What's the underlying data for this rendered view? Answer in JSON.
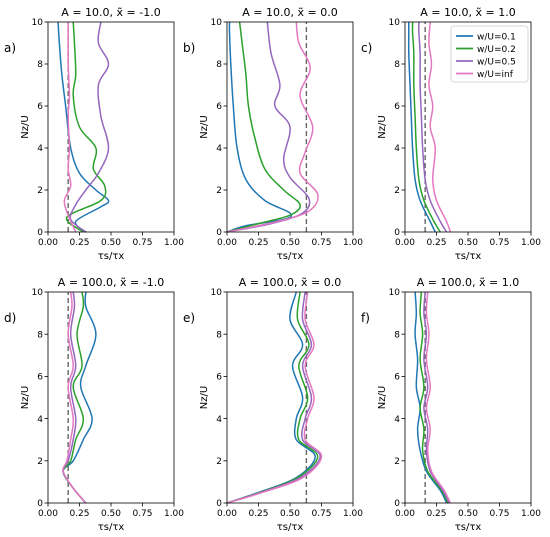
{
  "colors": {
    "w/U=0.1": "#1f77b4",
    "w/U=0.2": "#2ca02c",
    "w/U=0.5": "#9467bd",
    "w/U=inf": "#e377c2",
    "reference": "#666666",
    "axis": "#000000"
  },
  "legend": {
    "placement": "top-right",
    "panel": "c",
    "entries": [
      "w/U=0.1",
      "w/U=0.2",
      "w/U=0.5",
      "w/U=inf"
    ]
  },
  "chart_data": [
    {
      "type": "line",
      "panel_label": "a)",
      "title": "A = 10.0, x̃ = -1.0",
      "xlabel": "τs/τx",
      "ylabel": "Nz/U",
      "xlim": [
        0,
        1
      ],
      "ylim": [
        0,
        10
      ],
      "xticks": [
        "0.00",
        "0.25",
        "0.50",
        "0.75",
        "1.00"
      ],
      "yticks": [
        "0",
        "2",
        "4",
        "6",
        "8",
        "10"
      ],
      "reference_x": 0.16,
      "series": [
        {
          "name": "w/U=0.1",
          "x": [
            0.3,
            0.22,
            0.42,
            0.48,
            0.38,
            0.25,
            0.18,
            0.14,
            0.11,
            0.09,
            0.08
          ],
          "y": [
            0,
            0.5,
            1.2,
            1.5,
            2.0,
            2.8,
            4.0,
            6.0,
            7.5,
            9.0,
            10
          ]
        },
        {
          "name": "w/U=0.2",
          "x": [
            0.28,
            0.15,
            0.42,
            0.45,
            0.36,
            0.38,
            0.25,
            0.2,
            0.22,
            0.21,
            0.2
          ],
          "y": [
            0,
            0.7,
            1.5,
            2.2,
            3.0,
            4.0,
            5.0,
            6.5,
            7.5,
            9.0,
            10
          ]
        },
        {
          "name": "w/U=0.5",
          "x": [
            0.3,
            0.18,
            0.22,
            0.3,
            0.4,
            0.48,
            0.42,
            0.4,
            0.48,
            0.4,
            0.42
          ],
          "y": [
            0,
            0.6,
            1.3,
            2.0,
            2.8,
            4.0,
            5.5,
            7.0,
            8.0,
            9.0,
            10
          ]
        },
        {
          "name": "w/U=inf",
          "x": [
            0.22,
            0.16,
            0.13,
            0.18,
            0.16,
            0.17,
            0.16,
            0.17,
            0.16,
            0.16,
            0.16
          ],
          "y": [
            0,
            0.8,
            1.5,
            2.2,
            3.0,
            4.0,
            5.5,
            6.5,
            8.0,
            9.0,
            10
          ]
        }
      ]
    },
    {
      "type": "line",
      "panel_label": "b)",
      "title": "A = 10.0, x̃ = 0.0",
      "xlabel": "τs/τx",
      "ylabel": "Nz/U",
      "xlim": [
        0,
        1
      ],
      "ylim": [
        0,
        10
      ],
      "xticks": [
        "0.00",
        "0.25",
        "0.50",
        "0.75",
        "1.00"
      ],
      "yticks": [
        "0",
        "2",
        "4",
        "6",
        "8",
        "10"
      ],
      "reference_x": 0.63,
      "series": [
        {
          "name": "w/U=0.1",
          "x": [
            0,
            0.15,
            0.45,
            0.5,
            0.3,
            0.15,
            0.08,
            0.05,
            0.03,
            0.02,
            0.02
          ],
          "y": [
            0,
            0.3,
            0.6,
            0.9,
            1.5,
            2.5,
            4.0,
            6.0,
            8.0,
            9.5,
            10
          ]
        },
        {
          "name": "w/U=0.2",
          "x": [
            0,
            0.25,
            0.5,
            0.58,
            0.45,
            0.3,
            0.22,
            0.17,
            0.15,
            0.12,
            0.1
          ],
          "y": [
            0,
            0.4,
            0.8,
            1.3,
            2.0,
            3.0,
            4.5,
            6.0,
            7.5,
            9.0,
            10
          ]
        },
        {
          "name": "w/U=0.5",
          "x": [
            0,
            0.35,
            0.6,
            0.65,
            0.5,
            0.45,
            0.5,
            0.38,
            0.42,
            0.35,
            0.32
          ],
          "y": [
            0,
            0.4,
            0.9,
            1.6,
            2.6,
            3.5,
            5.0,
            6.0,
            7.0,
            8.5,
            10
          ]
        },
        {
          "name": "w/U=inf",
          "x": [
            0,
            0.4,
            0.65,
            0.72,
            0.58,
            0.62,
            0.68,
            0.58,
            0.66,
            0.57,
            0.55
          ],
          "y": [
            0,
            0.5,
            1.0,
            1.8,
            2.8,
            3.8,
            5.0,
            6.5,
            7.8,
            9.0,
            10
          ]
        }
      ]
    },
    {
      "type": "line",
      "panel_label": "c)",
      "title": "A = 10.0, x̃ = 1.0",
      "xlabel": "τs/τx",
      "ylabel": "Nz/U",
      "xlim": [
        0,
        1
      ],
      "ylim": [
        0,
        10
      ],
      "xticks": [
        "0.00",
        "0.25",
        "0.50",
        "0.75",
        "1.00"
      ],
      "yticks": [
        "0",
        "2",
        "4",
        "6",
        "8",
        "10"
      ],
      "reference_x": 0.16,
      "series": [
        {
          "name": "w/U=0.1",
          "x": [
            0.24,
            0.2,
            0.12,
            0.08,
            0.06,
            0.05,
            0.04,
            0.03,
            0.03,
            0.03,
            0.03
          ],
          "y": [
            0,
            0.5,
            1.5,
            2.5,
            4.0,
            5.5,
            7.0,
            8.5,
            9.5,
            9.8,
            10
          ]
        },
        {
          "name": "w/U=0.2",
          "x": [
            0.28,
            0.23,
            0.15,
            0.11,
            0.09,
            0.08,
            0.07,
            0.07,
            0.06,
            0.06,
            0.06
          ],
          "y": [
            0,
            0.5,
            1.5,
            2.5,
            4.0,
            5.5,
            7.0,
            8.5,
            9.5,
            9.8,
            10
          ]
        },
        {
          "name": "w/U=0.5",
          "x": [
            0.33,
            0.28,
            0.2,
            0.16,
            0.14,
            0.13,
            0.12,
            0.12,
            0.11,
            0.11,
            0.11
          ],
          "y": [
            0,
            0.5,
            1.5,
            2.5,
            4.0,
            5.5,
            7.0,
            8.5,
            9.5,
            9.8,
            10
          ]
        },
        {
          "name": "w/U=inf",
          "x": [
            0.36,
            0.33,
            0.25,
            0.22,
            0.24,
            0.2,
            0.22,
            0.19,
            0.21,
            0.19,
            0.2
          ],
          "y": [
            0,
            0.5,
            1.5,
            2.5,
            4.0,
            5.0,
            6.0,
            7.0,
            8.0,
            9.0,
            10
          ]
        }
      ]
    },
    {
      "type": "line",
      "panel_label": "d)",
      "title": "A = 100.0, x̃ = -1.0",
      "xlabel": "τs/τx",
      "ylabel": "Nz/U",
      "xlim": [
        0,
        1
      ],
      "ylim": [
        0,
        10
      ],
      "xticks": [
        "0.00",
        "0.25",
        "0.50",
        "0.75",
        "1.00"
      ],
      "yticks": [
        "0",
        "2",
        "4",
        "6",
        "8",
        "10"
      ],
      "reference_x": 0.16,
      "series": [
        {
          "name": "w/U=0.1",
          "x": [
            0.3,
            0.2,
            0.12,
            0.2,
            0.28,
            0.35,
            0.26,
            0.3,
            0.38,
            0.3,
            0.3
          ],
          "y": [
            0,
            0.7,
            1.5,
            2.0,
            3.0,
            4.0,
            5.5,
            6.5,
            8.0,
            9.3,
            10
          ]
        },
        {
          "name": "w/U=0.2",
          "x": [
            0.3,
            0.2,
            0.12,
            0.18,
            0.22,
            0.28,
            0.2,
            0.27,
            0.23,
            0.28,
            0.27
          ],
          "y": [
            0,
            0.7,
            1.5,
            2.0,
            3.0,
            4.0,
            5.5,
            6.5,
            8.0,
            9.3,
            10
          ]
        },
        {
          "name": "w/U=0.5",
          "x": [
            0.3,
            0.2,
            0.12,
            0.16,
            0.2,
            0.22,
            0.18,
            0.22,
            0.18,
            0.21,
            0.2
          ],
          "y": [
            0,
            0.7,
            1.5,
            2.0,
            3.0,
            4.0,
            5.5,
            6.5,
            8.0,
            9.3,
            10
          ]
        },
        {
          "name": "w/U=inf",
          "x": [
            0.3,
            0.2,
            0.12,
            0.15,
            0.18,
            0.2,
            0.16,
            0.2,
            0.16,
            0.19,
            0.18
          ],
          "y": [
            0,
            0.7,
            1.5,
            2.0,
            3.0,
            4.0,
            5.5,
            6.5,
            8.0,
            9.3,
            10
          ]
        }
      ]
    },
    {
      "type": "line",
      "panel_label": "e)",
      "title": "A = 100.0, x̃ = 0.0",
      "xlabel": "τs/τx",
      "ylabel": "Nz/U",
      "xlim": [
        0,
        1
      ],
      "ylim": [
        0,
        10
      ],
      "xticks": [
        "0.00",
        "0.25",
        "0.50",
        "0.75",
        "1.00"
      ],
      "yticks": [
        "0",
        "2",
        "4",
        "6",
        "8",
        "10"
      ],
      "reference_x": 0.63,
      "series": [
        {
          "name": "w/U=0.1",
          "x": [
            0,
            0.25,
            0.55,
            0.7,
            0.55,
            0.55,
            0.6,
            0.52,
            0.6,
            0.5,
            0.55
          ],
          "y": [
            0,
            0.5,
            1.2,
            2.2,
            3.0,
            4.0,
            5.0,
            6.5,
            7.5,
            8.7,
            10
          ]
        },
        {
          "name": "w/U=0.2",
          "x": [
            0,
            0.26,
            0.56,
            0.72,
            0.57,
            0.58,
            0.64,
            0.57,
            0.65,
            0.56,
            0.58
          ],
          "y": [
            0,
            0.5,
            1.2,
            2.2,
            3.0,
            4.0,
            5.0,
            6.5,
            7.5,
            8.7,
            10
          ]
        },
        {
          "name": "w/U=0.5",
          "x": [
            0,
            0.27,
            0.58,
            0.74,
            0.6,
            0.62,
            0.67,
            0.6,
            0.67,
            0.6,
            0.62
          ],
          "y": [
            0,
            0.5,
            1.2,
            2.2,
            3.0,
            4.0,
            5.0,
            6.5,
            7.5,
            8.7,
            10
          ]
        },
        {
          "name": "w/U=inf",
          "x": [
            0,
            0.28,
            0.6,
            0.75,
            0.62,
            0.64,
            0.69,
            0.62,
            0.69,
            0.62,
            0.64
          ],
          "y": [
            0,
            0.5,
            1.2,
            2.2,
            3.0,
            4.0,
            5.0,
            6.5,
            7.5,
            8.7,
            10
          ]
        }
      ]
    },
    {
      "type": "line",
      "panel_label": "f)",
      "title": "A = 100.0, x̃ = 1.0",
      "xlabel": "τs/τx",
      "ylabel": "Nz/U",
      "xlim": [
        0,
        1
      ],
      "ylim": [
        0,
        10
      ],
      "xticks": [
        "0.00",
        "0.25",
        "0.50",
        "0.75",
        "1.00"
      ],
      "yticks": [
        "0",
        "2",
        "4",
        "6",
        "8",
        "10"
      ],
      "reference_x": 0.16,
      "series": [
        {
          "name": "w/U=0.1",
          "x": [
            0.33,
            0.28,
            0.17,
            0.12,
            0.1,
            0.12,
            0.09,
            0.1,
            0.08,
            0.09,
            0.08
          ],
          "y": [
            0,
            0.6,
            1.5,
            2.5,
            3.5,
            4.5,
            5.5,
            6.8,
            8.0,
            9.0,
            10
          ]
        },
        {
          "name": "w/U=0.2",
          "x": [
            0.34,
            0.29,
            0.18,
            0.14,
            0.15,
            0.12,
            0.15,
            0.12,
            0.14,
            0.12,
            0.13
          ],
          "y": [
            0,
            0.6,
            1.5,
            2.5,
            3.5,
            4.5,
            5.5,
            6.8,
            8.0,
            9.0,
            10
          ]
        },
        {
          "name": "w/U=0.5",
          "x": [
            0.35,
            0.3,
            0.2,
            0.17,
            0.18,
            0.15,
            0.18,
            0.15,
            0.17,
            0.15,
            0.16
          ],
          "y": [
            0,
            0.6,
            1.5,
            2.5,
            3.5,
            4.5,
            5.5,
            6.8,
            8.0,
            9.0,
            10
          ]
        },
        {
          "name": "w/U=inf",
          "x": [
            0.36,
            0.31,
            0.21,
            0.18,
            0.2,
            0.17,
            0.2,
            0.17,
            0.19,
            0.17,
            0.18
          ],
          "y": [
            0,
            0.6,
            1.5,
            2.5,
            3.5,
            4.5,
            5.5,
            6.8,
            8.0,
            9.0,
            10
          ]
        }
      ]
    }
  ]
}
